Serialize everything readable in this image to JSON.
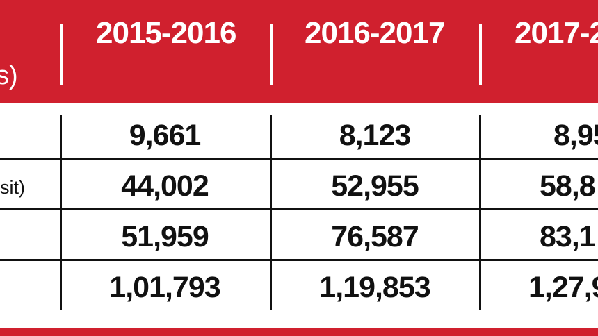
{
  "chart_data": {
    "type": "table",
    "header_label_fragment": "s)",
    "columns": [
      "2015-2016",
      "2016-2017",
      "2017-2"
    ],
    "rows": [
      {
        "label": "",
        "values": [
          "9,661",
          "8,123",
          "8,95"
        ]
      },
      {
        "label": "sit)",
        "values": [
          "44,002",
          "52,955",
          "58,8"
        ]
      },
      {
        "label": "",
        "values": [
          "51,959",
          "76,587",
          "83,1"
        ]
      },
      {
        "label": "",
        "values": [
          "1,01,793",
          "1,19,853",
          "1,27,9"
        ]
      }
    ]
  },
  "colors": {
    "header_bg": "#d0202e",
    "header_text": "#ffffff",
    "body_text": "#111111",
    "grid": "#111111"
  }
}
